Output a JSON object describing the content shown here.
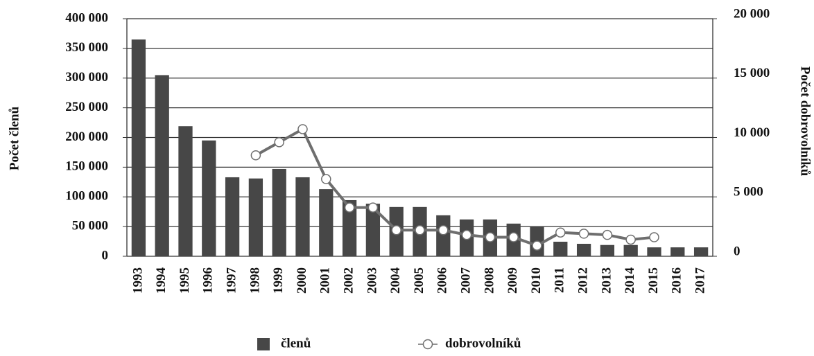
{
  "chart_data": {
    "type": "bar",
    "y_label": "Počet členů",
    "y2_label": "Počet dobrovolníků",
    "categories": [
      "1993",
      "1994",
      "1995",
      "1996",
      "1997",
      "1998",
      "1999",
      "2000",
      "2001",
      "2002",
      "2003",
      "2004",
      "2005",
      "2006",
      "2007",
      "2008",
      "2009",
      "2010",
      "2011",
      "2012",
      "2013",
      "2014",
      "2015",
      "2016",
      "2017"
    ],
    "series": [
      {
        "name": "členů",
        "type": "bar",
        "color": "#474747",
        "values": [
          365000,
          305000,
          219000,
          195000,
          133000,
          131000,
          147000,
          133000,
          113000,
          94500,
          88500,
          83000,
          83000,
          69000,
          62000,
          62000,
          55000,
          50000,
          24500,
          21000,
          19000,
          19000,
          15000,
          15000,
          15000
        ]
      },
      {
        "name": "dobrovolníků",
        "type": "line",
        "axis": "y2",
        "color": "#6e6e6e",
        "marker_fill": "#ffffff",
        "values": [
          null,
          null,
          null,
          null,
          null,
          8500,
          9600,
          10700,
          6500,
          4100,
          4100,
          2200,
          2200,
          2200,
          1800,
          1600,
          1600,
          900,
          2000,
          1900,
          1800,
          1400,
          1600,
          null,
          null
        ]
      }
    ],
    "ylim": [
      0,
      400000
    ],
    "yticks": [
      0,
      {
        "value": 50000,
        "label": "50 000"
      },
      {
        "value": 100000,
        "label": "100 000"
      },
      {
        "value": 150000,
        "label": "150 000"
      },
      {
        "value": 200000,
        "label": "200 000"
      },
      {
        "value": 250000,
        "label": "250 000"
      },
      {
        "value": 300000,
        "label": "300 000"
      },
      {
        "value": 350000,
        "label": "350 000"
      },
      {
        "value": 400000,
        "label": "400 000"
      }
    ],
    "y2lim": [
      0,
      20000
    ],
    "y2ticks": [
      0,
      {
        "value": 5000,
        "label": "5 000"
      },
      {
        "value": 10000,
        "label": "10 000"
      },
      {
        "value": 15000,
        "label": "15 000"
      },
      {
        "value": 20000,
        "label": "20 000"
      }
    ],
    "grid": true,
    "legend": "bottom"
  }
}
